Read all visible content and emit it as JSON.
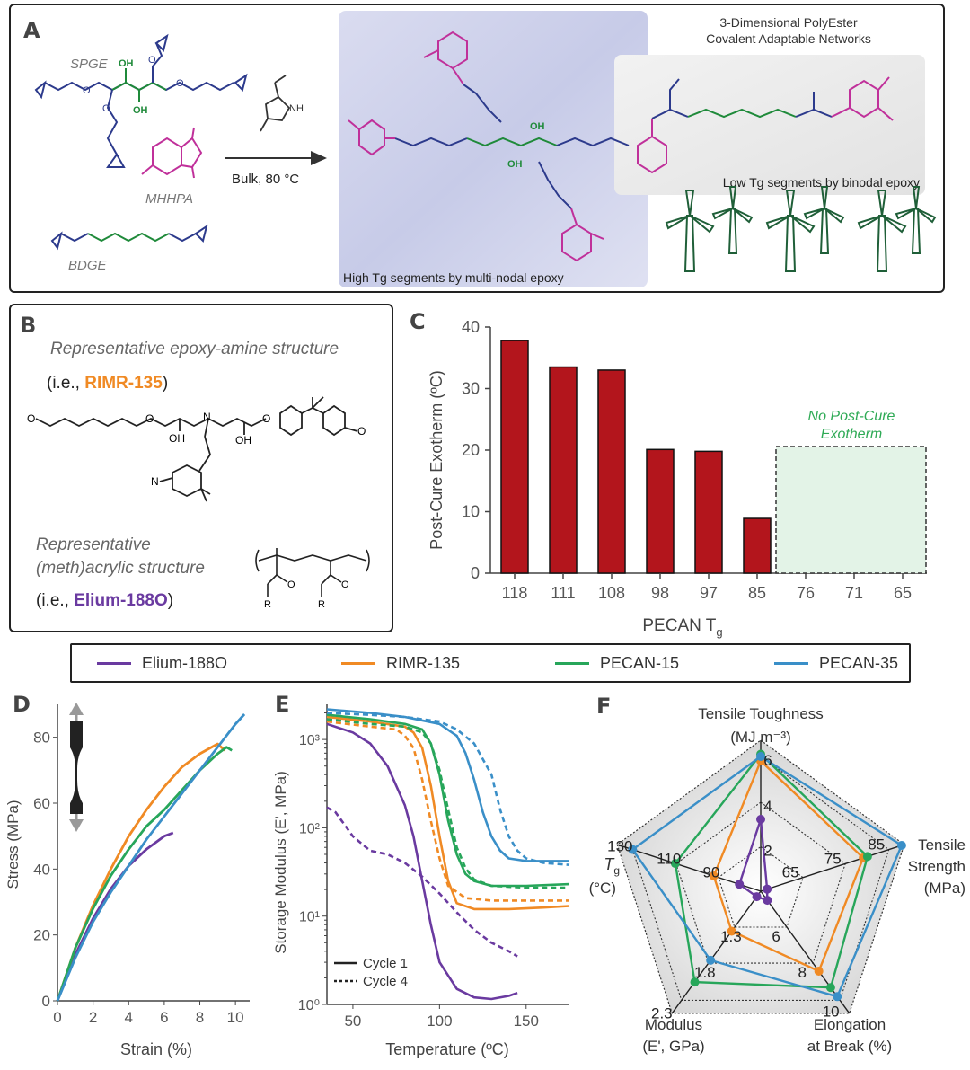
{
  "panels": {
    "a": {
      "label": "A",
      "sgpe": "SPGE",
      "mhhpa": "MHHPA",
      "bdge": "BDGE",
      "oh": "OH",
      "nh": "H",
      "n": "N",
      "o": "O",
      "conditions": "Bulk, 80 °C",
      "title_line1": "3-Dimensional PolyEster",
      "title_line2": "Covalent Adaptable Networks",
      "low_tg": "Low Tg segments by binodal epoxy",
      "high_tg": "High Tg segments by multi-nodal epoxy"
    },
    "b": {
      "label": "B",
      "heading1": "Representative epoxy-amine structure",
      "ie1_prefix": "(i.e., ",
      "ie1_name": "RIMR-135",
      "ie1_suffix": ")",
      "heading2a": "Representative",
      "heading2b": "(meth)acrylic structure",
      "ie2_prefix": "(i.e., ",
      "ie2_name": "Elium-188O",
      "ie2_suffix": ")",
      "oh": "OH",
      "n": "N",
      "o": "O",
      "r": "R"
    },
    "c": {
      "label": "C",
      "note_line1": "No Post-Cure",
      "note_line2": "Exotherm"
    },
    "d": {
      "label": "D"
    },
    "e": {
      "label": "E",
      "legend_solid": "Cycle 1",
      "legend_dashed": "Cycle 4"
    },
    "f": {
      "label": "F",
      "axes": [
        {
          "name_line1": "Tensile Toughness",
          "name_line2": "(MJ m⁻³)",
          "ticks": [
            "2",
            "4",
            "6"
          ]
        },
        {
          "name_line1": "Tensile",
          "name_line2": "Strength",
          "name_line3": "(MPa)",
          "ticks": [
            "65",
            "75",
            "85"
          ]
        },
        {
          "name_line1": "Elongation",
          "name_line2": "at Break (%)",
          "ticks": [
            "6",
            "8",
            "10"
          ]
        },
        {
          "name_line1": "Modulus",
          "name_line2": "(E', GPa)",
          "ticks": [
            "1.3",
            "1.8",
            "2.3"
          ]
        },
        {
          "name_line1": "T",
          "name_line1_sub": "g",
          "name_line2": "(°C)",
          "ticks": [
            "90",
            "110",
            "130"
          ]
        }
      ]
    }
  },
  "legend": [
    {
      "name": "Elium-188O",
      "color": "#6a3aa0"
    },
    {
      "name": "RIMR-135",
      "color": "#f08a24"
    },
    {
      "name": "PECAN-15",
      "color": "#27a65a"
    },
    {
      "name": "PECAN-35",
      "color": "#3a8fc8"
    }
  ],
  "colors": {
    "bar": "#b3151c",
    "green_note": "#2eaa55",
    "magenta": "#c0309a",
    "blue_chem": "#2c3a8c",
    "green_chem": "#1f8a3a",
    "turbine": "#1f5f38"
  },
  "chart_data": [
    {
      "type": "bar",
      "categories": [
        "118",
        "111",
        "108",
        "98",
        "97",
        "85",
        "76",
        "71",
        "65"
      ],
      "values": [
        37.8,
        33.5,
        33.0,
        20.1,
        19.8,
        8.9,
        0,
        0,
        0
      ],
      "xlabel": "PECAN T",
      "xlabel_sub": "g",
      "ylabel": "Post-Cure Exotherm (ºC)",
      "ylim": [
        0,
        40
      ],
      "yticks": [
        "0",
        "10",
        "20",
        "30",
        "40"
      ]
    },
    {
      "type": "line",
      "xlabel": "Strain (%)",
      "ylabel": "Stress (MPa)",
      "xlim": [
        0,
        10.8
      ],
      "ylim": [
        0,
        90
      ],
      "xticks": [
        "0",
        "2",
        "4",
        "6",
        "8",
        "10"
      ],
      "yticks": [
        "0",
        "20",
        "40",
        "60",
        "80"
      ],
      "series": [
        {
          "name": "Elium-188O",
          "x": [
            0,
            1,
            2,
            3,
            4,
            5,
            6,
            6.5
          ],
          "y": [
            0,
            14,
            25,
            34,
            41,
            46,
            50,
            51
          ]
        },
        {
          "name": "RIMR-135",
          "x": [
            0,
            1,
            2,
            3,
            4,
            5,
            6,
            7,
            8,
            9,
            9.4
          ],
          "y": [
            0,
            16,
            29,
            40,
            50,
            58,
            65,
            71,
            75,
            78,
            76
          ]
        },
        {
          "name": "PECAN-15",
          "x": [
            0,
            1,
            2,
            3,
            4,
            5,
            6,
            7,
            8,
            9,
            9.5,
            9.8
          ],
          "y": [
            0,
            16,
            28,
            38,
            46,
            53,
            58,
            64,
            70,
            75,
            77,
            76
          ]
        },
        {
          "name": "PECAN-35",
          "x": [
            0,
            1,
            2,
            3,
            4,
            5,
            6,
            7,
            8,
            9,
            10,
            10.5
          ],
          "y": [
            0,
            13,
            24,
            33,
            41,
            49,
            56,
            63,
            70,
            77,
            84,
            87
          ]
        }
      ]
    },
    {
      "type": "line",
      "xlabel": "Temperature (ºC)",
      "ylabel": "Storage Modulus (E', MPa)",
      "xlim": [
        35,
        175
      ],
      "ylim": [
        1,
        2500
      ],
      "yscale": "log",
      "xticks": [
        "50",
        "100",
        "150"
      ],
      "yticks": [
        "10⁰",
        "10¹",
        "10²",
        "10³"
      ],
      "series": [
        {
          "name": "Elium-188O",
          "x": [
            35,
            50,
            60,
            70,
            80,
            85,
            90,
            95,
            100,
            110,
            120,
            130,
            140,
            145
          ],
          "y": [
            1500,
            1200,
            900,
            500,
            180,
            80,
            25,
            8,
            3,
            1.5,
            1.2,
            1.15,
            1.25,
            1.35
          ]
        },
        {
          "name": "RIMR-135",
          "x": [
            35,
            60,
            80,
            85,
            90,
            95,
            100,
            105,
            110,
            120,
            140,
            160,
            175
          ],
          "y": [
            1800,
            1600,
            1400,
            1200,
            800,
            300,
            80,
            25,
            14,
            12,
            12,
            12.5,
            13
          ]
        },
        {
          "name": "PECAN-15",
          "x": [
            35,
            60,
            80,
            90,
            95,
            100,
            105,
            110,
            115,
            120,
            130,
            150,
            175
          ],
          "y": [
            1900,
            1700,
            1500,
            1300,
            900,
            400,
            120,
            50,
            30,
            25,
            22,
            22,
            23
          ]
        },
        {
          "name": "PECAN-35",
          "x": [
            35,
            60,
            80,
            100,
            110,
            115,
            120,
            125,
            130,
            135,
            140,
            150,
            175
          ],
          "y": [
            2200,
            2000,
            1800,
            1500,
            1100,
            700,
            350,
            150,
            80,
            55,
            45,
            42,
            42
          ]
        },
        {
          "name": "Elium-188O (Cycle 4)",
          "x": [
            35,
            40,
            50,
            60,
            70,
            80,
            90,
            100,
            110,
            120,
            130,
            140,
            145
          ],
          "y": [
            170,
            150,
            80,
            55,
            50,
            40,
            28,
            18,
            11,
            7,
            5,
            4,
            3.5
          ]
        },
        {
          "name": "RIMR-135 (Cycle 4)",
          "x": [
            35,
            60,
            75,
            80,
            85,
            90,
            95,
            100,
            105,
            115,
            130,
            150,
            175
          ],
          "y": [
            1600,
            1400,
            1300,
            1100,
            800,
            350,
            120,
            45,
            22,
            16,
            15,
            15,
            15
          ]
        },
        {
          "name": "PECAN-15 (Cycle 4)",
          "x": [
            35,
            60,
            80,
            90,
            95,
            100,
            105,
            110,
            115,
            120,
            130,
            150,
            175
          ],
          "y": [
            1700,
            1500,
            1400,
            1200,
            900,
            450,
            160,
            60,
            35,
            26,
            22,
            21,
            21
          ]
        },
        {
          "name": "PECAN-35 (Cycle 4)",
          "x": [
            35,
            60,
            80,
            100,
            110,
            120,
            130,
            135,
            140,
            145,
            150,
            160,
            175
          ],
          "y": [
            2000,
            1900,
            1800,
            1600,
            1300,
            900,
            400,
            160,
            80,
            55,
            45,
            40,
            38
          ]
        }
      ]
    },
    {
      "type": "radar",
      "axes": [
        "Tensile Toughness",
        "Tensile Strength",
        "Elongation at Break",
        "Modulus",
        "Tg"
      ],
      "series": [
        {
          "name": "Elium-188O",
          "values": [
            3.2,
            54,
            4.5,
            0.8,
            80
          ]
        },
        {
          "name": "RIMR-135",
          "values": [
            5.8,
            79,
            8.4,
            1.35,
            92
          ]
        },
        {
          "name": "PECAN-15",
          "values": [
            6.1,
            80,
            9.3,
            2.05,
            110
          ]
        },
        {
          "name": "PECAN-35",
          "values": [
            6.0,
            88,
            9.8,
            1.75,
            130
          ]
        }
      ]
    }
  ]
}
